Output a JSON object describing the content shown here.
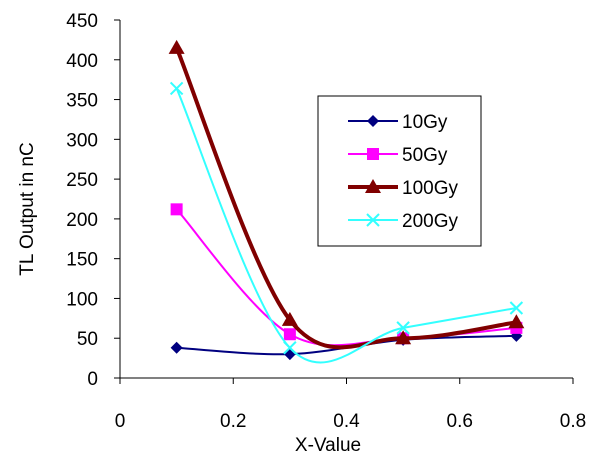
{
  "chart_data": {
    "type": "scatter",
    "title": "",
    "xlabel": "X-Value",
    "ylabel": "TL Output in nC",
    "xlim": [
      0,
      0.8
    ],
    "ylim": [
      0,
      450
    ],
    "xticks": [
      0,
      0.2,
      0.4,
      0.6,
      0.8
    ],
    "yticks": [
      0,
      50,
      100,
      150,
      200,
      250,
      300,
      350,
      400,
      450
    ],
    "xtick_labels": [
      "0",
      "0.2",
      "0.4",
      "0.6",
      "0.8"
    ],
    "ytick_labels": [
      "0",
      "50",
      "100",
      "150",
      "200",
      "250",
      "300",
      "350",
      "400",
      "450"
    ],
    "grid": false,
    "smooth_lines": true,
    "legend_position": "right",
    "series": [
      {
        "name": "10Gy",
        "color": "#000080",
        "marker": "diamond",
        "x": [
          0.1,
          0.3,
          0.5,
          0.7
        ],
        "y": [
          38,
          30,
          48,
          53
        ]
      },
      {
        "name": "50Gy",
        "color": "#ff00ff",
        "marker": "square",
        "x": [
          0.1,
          0.3,
          0.5,
          0.7
        ],
        "y": [
          212,
          55,
          50,
          63
        ]
      },
      {
        "name": "100Gy",
        "color": "#800000",
        "marker": "triangle",
        "x": [
          0.1,
          0.3,
          0.5,
          0.7
        ],
        "y": [
          415,
          73,
          50,
          70
        ]
      },
      {
        "name": "200Gy",
        "color": "#33ffff",
        "marker": "x",
        "x": [
          0.1,
          0.3,
          0.5,
          0.7
        ],
        "y": [
          364,
          38,
          63,
          88
        ]
      }
    ]
  }
}
